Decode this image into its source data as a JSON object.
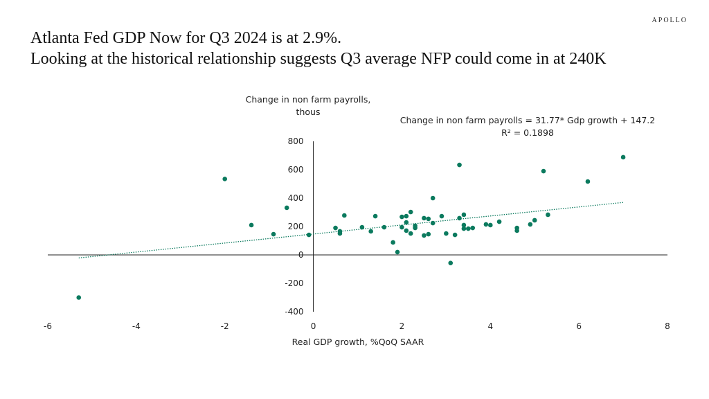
{
  "header": {
    "title_line1": "Atlanta Fed GDP Now for Q3 2024 is at 2.9%.",
    "title_line2": "Looking at the historical relationship suggests Q3 average NFP could come in at 240K",
    "logo": "APOLLO"
  },
  "chart_data": {
    "type": "scatter",
    "title": "",
    "xlabel": "Real GDP growth, %QoQ SAAR",
    "ylabel_line1": "Change in non farm payrolls,",
    "ylabel_line2": "thous",
    "xlim": [
      -6,
      8
    ],
    "ylim": [
      -400,
      800
    ],
    "xticks": [
      "-6",
      "-4",
      "-2",
      "0",
      "2",
      "4",
      "6",
      "8"
    ],
    "yticks": [
      "-400",
      "-200",
      "0",
      "200",
      "400",
      "600",
      "800"
    ],
    "grid": false,
    "point_color": "#0b7a5e",
    "annotation_line1": "Change in non farm payrolls = 31.77* Gdp growth + 147.2",
    "annotation_line2": "R² = 0.1898",
    "trendline": {
      "slope": 31.77,
      "intercept": 147.2,
      "x_range": [
        -5.3,
        7.0
      ]
    },
    "points": [
      [
        -5.3,
        -300
      ],
      [
        -2.0,
        535
      ],
      [
        -1.4,
        210
      ],
      [
        -0.9,
        146
      ],
      [
        -0.6,
        332
      ],
      [
        -0.1,
        141
      ],
      [
        0.5,
        190
      ],
      [
        0.6,
        166
      ],
      [
        0.6,
        151
      ],
      [
        0.7,
        278
      ],
      [
        1.1,
        195
      ],
      [
        1.3,
        166
      ],
      [
        1.4,
        273
      ],
      [
        1.6,
        195
      ],
      [
        1.8,
        88
      ],
      [
        1.9,
        20
      ],
      [
        2.0,
        195
      ],
      [
        2.0,
        268
      ],
      [
        2.1,
        273
      ],
      [
        2.1,
        229
      ],
      [
        2.1,
        171
      ],
      [
        2.2,
        302
      ],
      [
        2.2,
        151
      ],
      [
        2.3,
        205
      ],
      [
        2.3,
        190
      ],
      [
        2.5,
        137
      ],
      [
        2.5,
        259
      ],
      [
        2.6,
        254
      ],
      [
        2.6,
        146
      ],
      [
        2.7,
        400
      ],
      [
        2.7,
        224
      ],
      [
        2.9,
        273
      ],
      [
        3.0,
        151
      ],
      [
        3.1,
        -57
      ],
      [
        3.2,
        141
      ],
      [
        3.3,
        634
      ],
      [
        3.3,
        259
      ],
      [
        3.4,
        283
      ],
      [
        3.4,
        210
      ],
      [
        3.4,
        185
      ],
      [
        3.5,
        185
      ],
      [
        3.6,
        190
      ],
      [
        3.9,
        215
      ],
      [
        4.0,
        210
      ],
      [
        4.2,
        234
      ],
      [
        4.6,
        190
      ],
      [
        4.6,
        171
      ],
      [
        4.9,
        215
      ],
      [
        5.0,
        244
      ],
      [
        5.2,
        590
      ],
      [
        5.3,
        283
      ],
      [
        6.2,
        517
      ],
      [
        7.0,
        688
      ]
    ]
  }
}
